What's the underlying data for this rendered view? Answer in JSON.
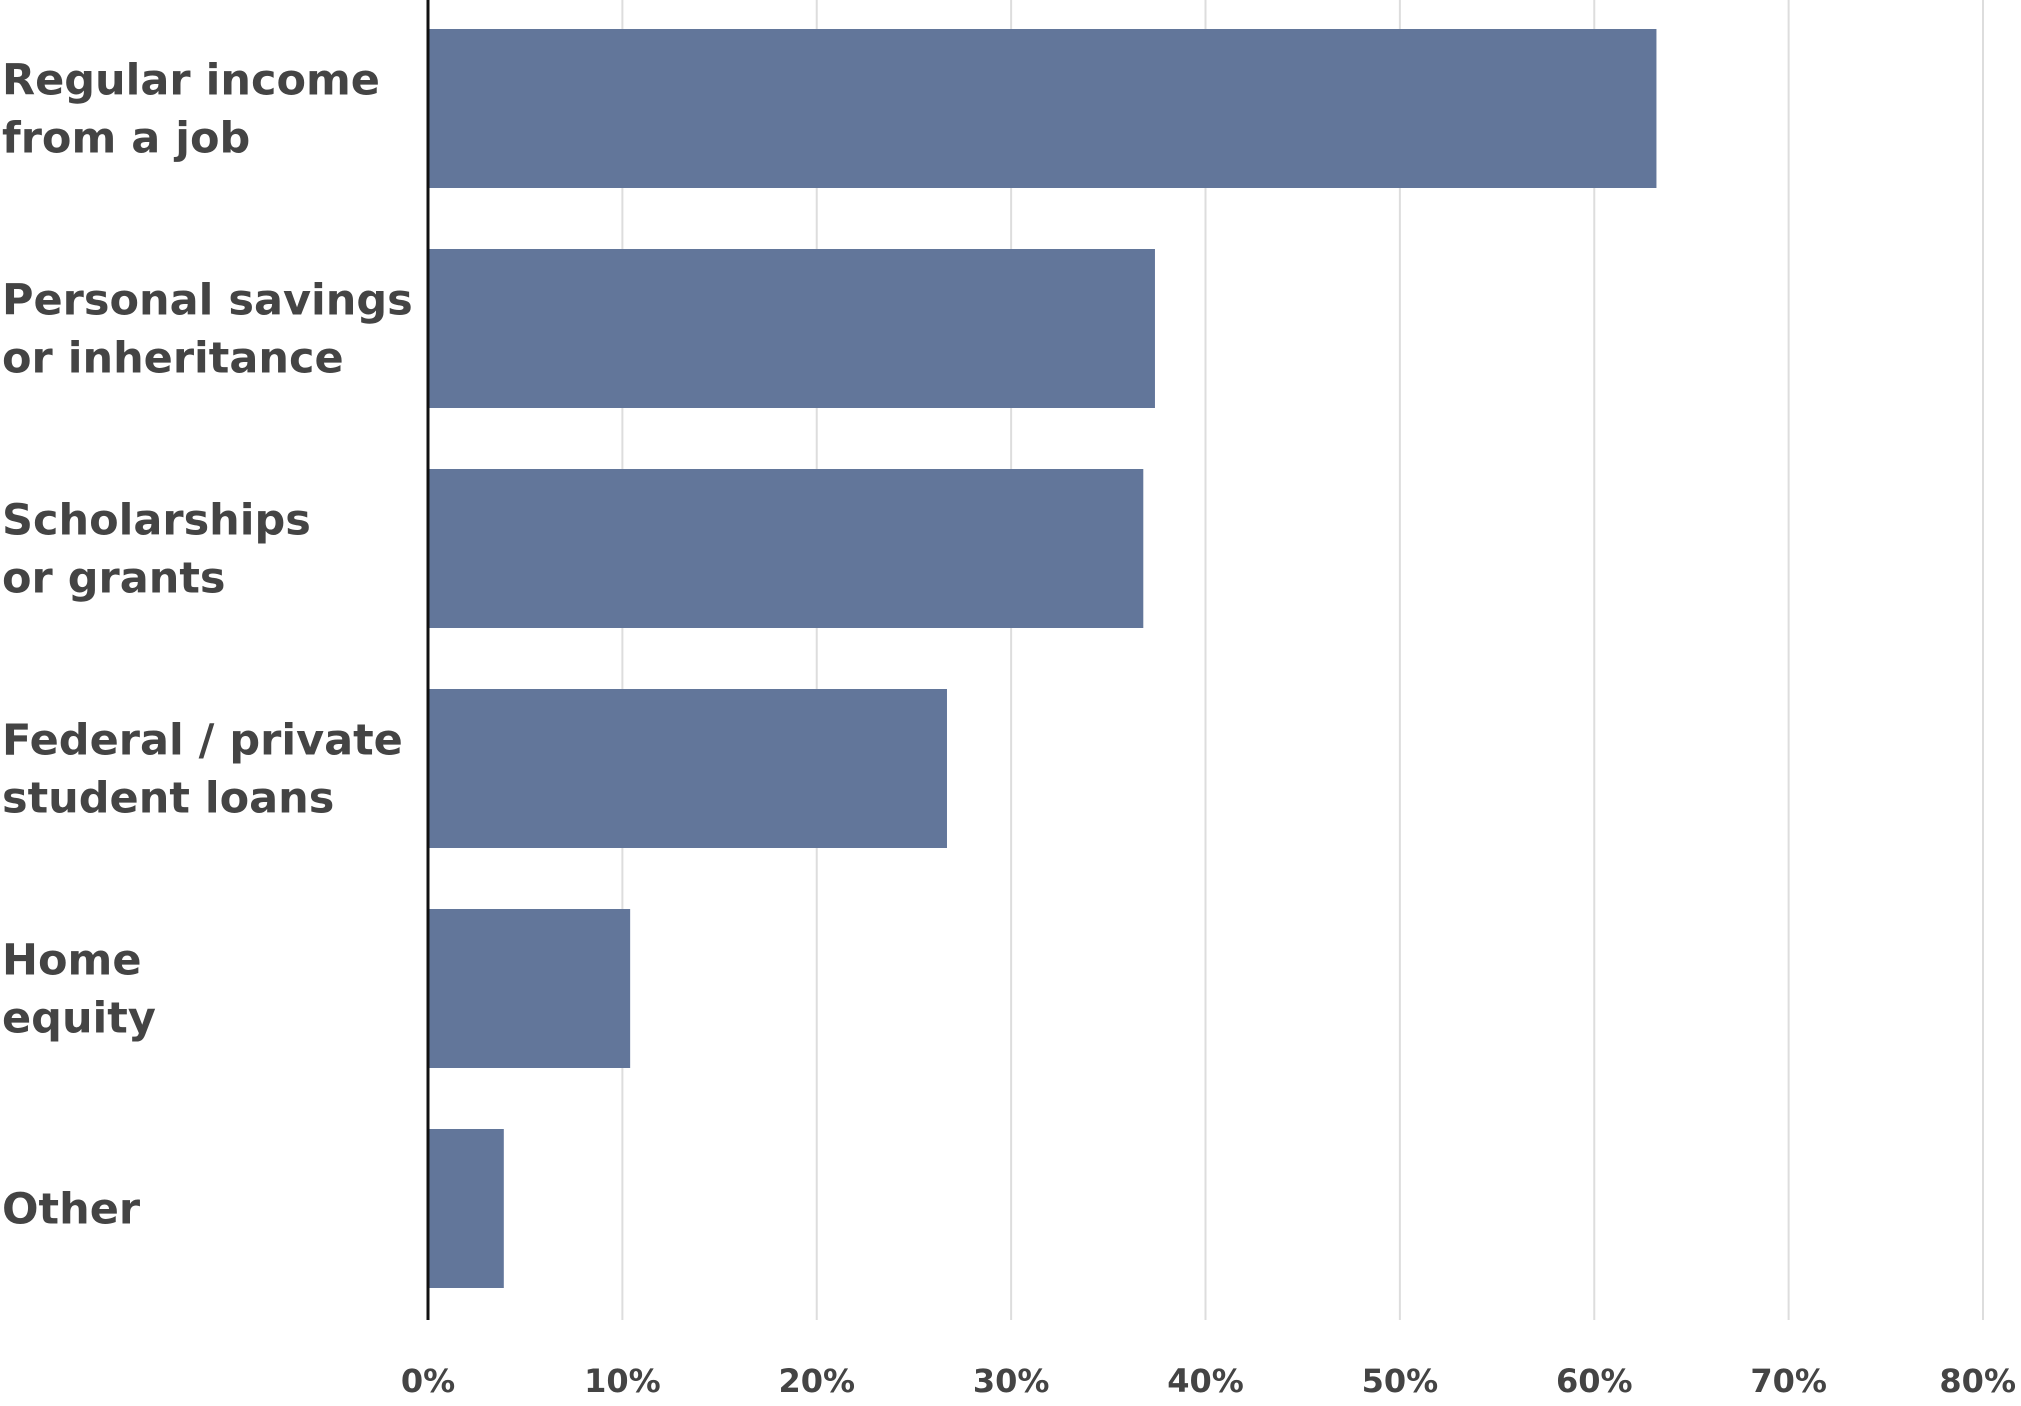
{
  "chart_data": {
    "type": "bar",
    "orientation": "horizontal",
    "title": "",
    "xlabel": "",
    "ylabel": "",
    "categories": [
      [
        "Regular income",
        "from a job"
      ],
      [
        "Personal savings",
        "or inheritance"
      ],
      [
        "Scholarships",
        "or grants"
      ],
      [
        "Federal / private",
        "student loans"
      ],
      [
        "Home",
        "equity"
      ],
      [
        "Other"
      ]
    ],
    "values": [
      63.2,
      37.4,
      36.8,
      26.7,
      10.4,
      3.9
    ],
    "xlim": [
      0,
      80
    ],
    "ticks": [
      0,
      10,
      20,
      30,
      40,
      50,
      60,
      70,
      80
    ],
    "tick_labels": [
      "0%",
      "10%",
      "20%",
      "30%",
      "40%",
      "50%",
      "60%",
      "70%",
      "80%"
    ],
    "bar_color": "#62769a",
    "grid": true,
    "legend": "none"
  }
}
